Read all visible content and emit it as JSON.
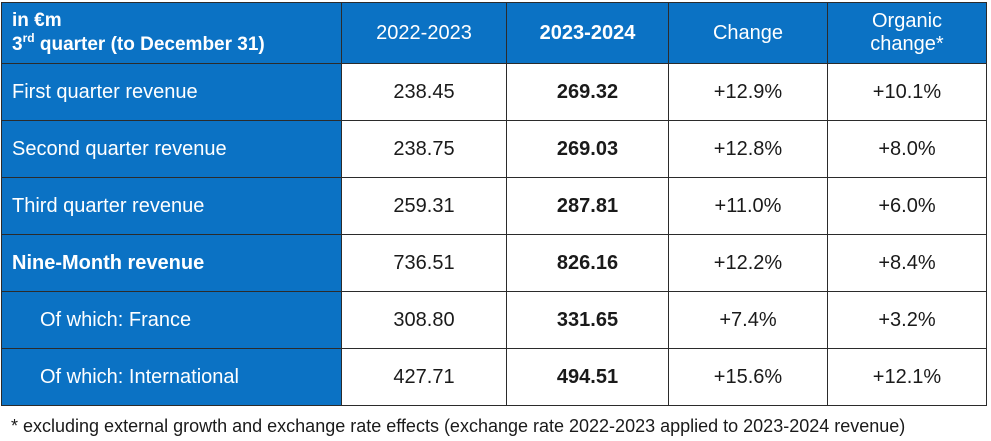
{
  "header": {
    "unit": "in €m",
    "quarter_num": "3",
    "quarter_sup": "rd",
    "quarter_rest": " quarter (to December 31)",
    "col_2022_2023": "2022-2023",
    "col_2023_2024": "2023-2024",
    "col_change": "Change",
    "col_organic_line1": "Organic",
    "col_organic_line2": "change*"
  },
  "rows": [
    {
      "label": "First quarter revenue",
      "v2022_2023": "238.45",
      "v2023_2024": "269.32",
      "change": "+12.9%",
      "organic": "+10.1%"
    },
    {
      "label": "Second quarter revenue",
      "v2022_2023": "238.75",
      "v2023_2024": "269.03",
      "change": "+12.8%",
      "organic": "+8.0%"
    },
    {
      "label": "Third quarter revenue",
      "v2022_2023": "259.31",
      "v2023_2024": "287.81",
      "change": "+11.0%",
      "organic": "+6.0%"
    },
    {
      "label": "Nine-Month revenue",
      "v2022_2023": "736.51",
      "v2023_2024": "826.16",
      "change": "+12.2%",
      "organic": "+8.4%"
    },
    {
      "label": "Of which: France",
      "v2022_2023": "308.80",
      "v2023_2024": "331.65",
      "change": "+7.4%",
      "organic": "+3.2%"
    },
    {
      "label": "Of which: International",
      "v2022_2023": "427.71",
      "v2023_2024": "494.51",
      "change": "+15.6%",
      "organic": "+12.1%"
    }
  ],
  "footnote": "* excluding external growth and exchange rate effects (exchange rate 2022-2023 applied to 2023-2024 revenue)",
  "colors": {
    "header_blue": "#0b72c4",
    "text": "#1a1a1a",
    "border": "#2b2b2b"
  }
}
